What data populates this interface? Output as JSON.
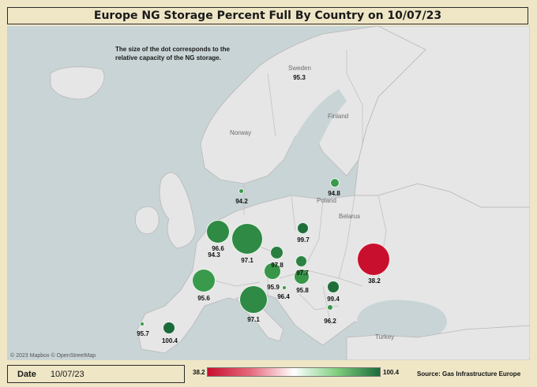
{
  "title": "Europe NG Storage Percent Full By Country on 10/07/23",
  "note_line1": "The size of the dot corresponds to the",
  "note_line2": "relative capacity of the NG storage.",
  "attribution": "© 2023 Mapbox © OpenStreetMap",
  "map_labels": {
    "sweden": "Sweden",
    "finland": "Finland",
    "norway": "Norway",
    "belarus": "Belarus",
    "poland": "Poland",
    "turkey": "Turkey"
  },
  "countries": [
    {
      "value": "95.3"
    },
    {
      "value": "94.8"
    },
    {
      "value": "94.2"
    },
    {
      "value": "96.6"
    },
    {
      "value": "94.3"
    },
    {
      "value": "97.1"
    },
    {
      "value": "99.7"
    },
    {
      "value": "97.8"
    },
    {
      "value": "97.7"
    },
    {
      "value": "38.2"
    },
    {
      "value": "95.9"
    },
    {
      "value": "96.4"
    },
    {
      "value": "95.8"
    },
    {
      "value": "95.6"
    },
    {
      "value": "99.4"
    },
    {
      "value": "97.1"
    },
    {
      "value": "96.2"
    },
    {
      "value": "95.7"
    },
    {
      "value": "100.4"
    }
  ],
  "footer": {
    "date_label": "Date",
    "date_value": "10/07/23",
    "legend_min": "38.2",
    "legend_max": "100.4",
    "source": "Source: Gas Infrastructure Europe"
  },
  "colors": {
    "high": "#1b6b3a",
    "mid_high": "#3a9a4c",
    "low": "#c8102e",
    "land": "#e6e6e6",
    "sea": "#c9d4d6"
  }
}
